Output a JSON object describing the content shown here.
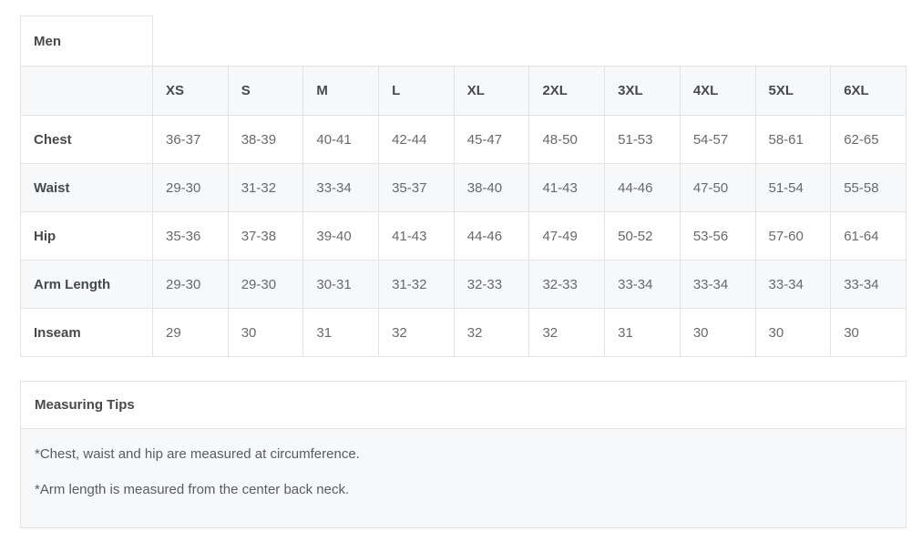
{
  "size_chart": {
    "title": "Men",
    "columns": [
      "XS",
      "S",
      "M",
      "L",
      "XL",
      "2XL",
      "3XL",
      "4XL",
      "5XL",
      "6XL"
    ],
    "rows": [
      {
        "label": "Chest",
        "values": [
          "36-37",
          "38-39",
          "40-41",
          "42-44",
          "45-47",
          "48-50",
          "51-53",
          "54-57",
          "58-61",
          "62-65"
        ]
      },
      {
        "label": "Waist",
        "values": [
          "29-30",
          "31-32",
          "33-34",
          "35-37",
          "38-40",
          "41-43",
          "44-46",
          "47-50",
          "51-54",
          "55-58"
        ]
      },
      {
        "label": "Hip",
        "values": [
          "35-36",
          "37-38",
          "39-40",
          "41-43",
          "44-46",
          "47-49",
          "50-52",
          "53-56",
          "57-60",
          "61-64"
        ]
      },
      {
        "label": "Arm Length",
        "values": [
          "29-30",
          "29-30",
          "30-31",
          "31-32",
          "32-33",
          "32-33",
          "33-34",
          "33-34",
          "33-34",
          "33-34"
        ]
      },
      {
        "label": "Inseam",
        "values": [
          "29",
          "30",
          "31",
          "32",
          "32",
          "32",
          "31",
          "30",
          "30",
          "30"
        ]
      }
    ]
  },
  "measuring_tips": {
    "title": "Measuring Tips",
    "notes": [
      "*Chest, waist and hip are measured at circumference.",
      "*Arm length is measured from the center back neck."
    ]
  },
  "colors": {
    "stripe_background": "#f7f8f9",
    "border": "#e2e3e5",
    "heading_text": "#48494b",
    "value_text": "#68696b"
  }
}
